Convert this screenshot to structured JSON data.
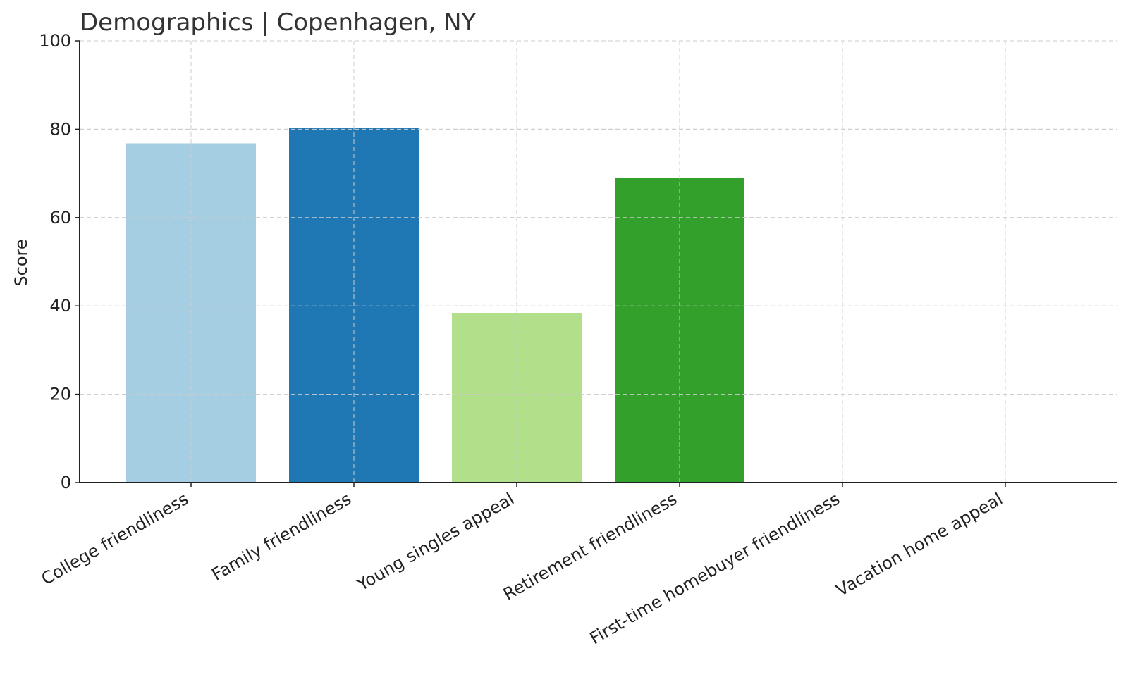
{
  "chart_data": {
    "type": "bar",
    "title": "Demographics | Copenhagen, NY",
    "xlabel": "",
    "ylabel": "Score",
    "ylim": [
      0,
      100
    ],
    "yticks": [
      0,
      20,
      40,
      60,
      80,
      100
    ],
    "grid": true,
    "categories": [
      "College friendliness",
      "Family friendliness",
      "Young singles appeal",
      "Retirement friendliness",
      "First-time homebuyer friendliness",
      "Vacation home appeal"
    ],
    "values": [
      76.8,
      80.3,
      38.3,
      68.9,
      0,
      0
    ],
    "colors": [
      "#a6cee3",
      "#1f78b4",
      "#b2df8a",
      "#33a02c",
      "#fb9a99",
      "#e31a1c"
    ]
  }
}
